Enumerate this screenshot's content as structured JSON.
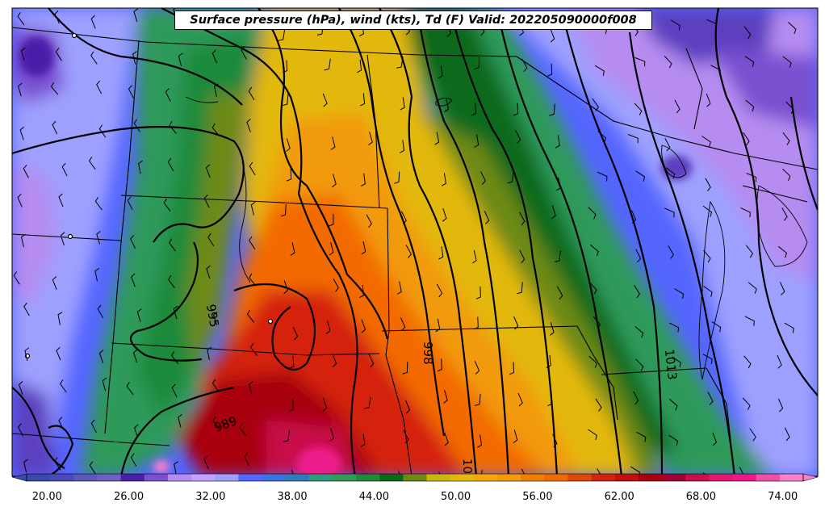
{
  "title": "Surface pressure (hPa), wind (kts), Td (F) Valid: 202205090000f008",
  "map": {
    "variable": "dewpoint",
    "units": "F",
    "isobar_labels": [
      {
        "text": "995"
      },
      {
        "text": "989"
      },
      {
        "text": "998"
      },
      {
        "text": "1013"
      },
      {
        "text": "10"
      }
    ],
    "palette": {
      "c20": "#3a4aa8",
      "c23": "#5c3fbf",
      "c26": "#4b1fa8",
      "c29": "#7a4fd0",
      "c32": "#b68cf0",
      "c35": "#9ea0ff",
      "c38": "#5566ff",
      "c41": "#3a72e0",
      "c44": "#2f9a5a",
      "c47": "#0b6a1a",
      "c50": "#6e8a15",
      "c53": "#e3b80a",
      "c56": "#f29a08",
      "c59": "#f26a00",
      "c62": "#d42410",
      "c65": "#a80010",
      "c68": "#c8104a",
      "c71": "#ec1a8a",
      "c74": "#ff80c8"
    }
  },
  "colorbar": {
    "ticks": [
      "20.00",
      "26.00",
      "32.00",
      "38.00",
      "44.00",
      "50.00",
      "56.00",
      "62.00",
      "68.00",
      "74.00"
    ],
    "colors": [
      "#3a4aa8",
      "#4a4ab8",
      "#5c58b8",
      "#6f5fc0",
      "#4b1fa8",
      "#7a4fd0",
      "#b68cf0",
      "#c4a2ff",
      "#9ea0ff",
      "#5566ff",
      "#3a72e0",
      "#2f7ab8",
      "#2f9a7a",
      "#2f9a5a",
      "#1f8a3a",
      "#0b6a1a",
      "#6e8a15",
      "#c8b80a",
      "#e3b80a",
      "#f2a808",
      "#f29a08",
      "#f28000",
      "#f26a00",
      "#e04a08",
      "#d42410",
      "#c01010",
      "#a80010",
      "#a00030",
      "#c8104a",
      "#e01870",
      "#ec1a8a",
      "#f050a8",
      "#ff80c8"
    ]
  }
}
